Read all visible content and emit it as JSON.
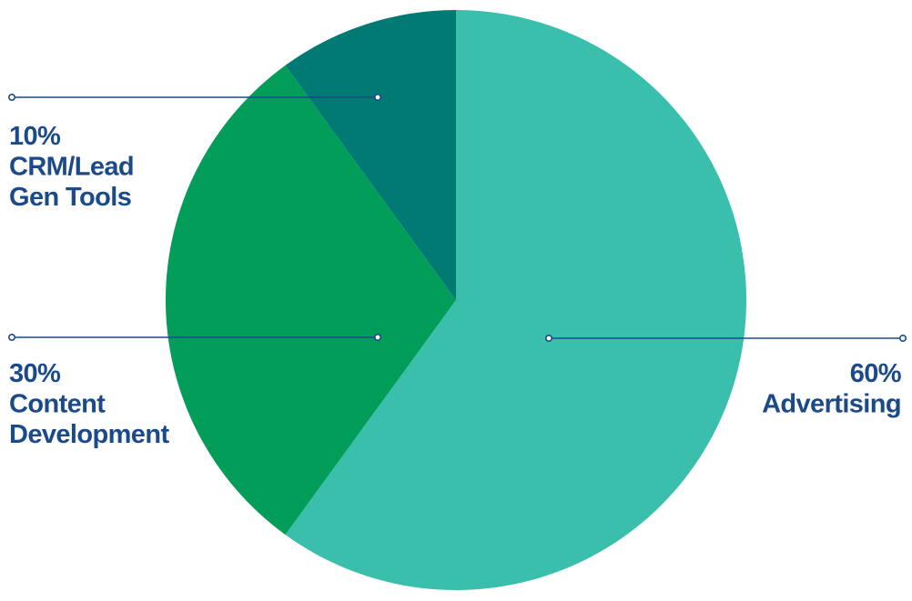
{
  "chart_data": {
    "type": "pie",
    "title": "",
    "start_angle": "12 o'clock",
    "direction": "clockwise",
    "slices": [
      {
        "label": "Advertising",
        "value": 60,
        "percent_label": "60%",
        "label_lines": [
          "60%",
          "Advertising"
        ],
        "label_side": "right",
        "color": "#3bbfad"
      },
      {
        "label": "Content Development",
        "value": 30,
        "percent_label": "30%",
        "label_lines": [
          "30%",
          "Content",
          "Development"
        ],
        "label_side": "left",
        "color": "#019d59"
      },
      {
        "label": "CRM/Lead Gen Tools",
        "value": 10,
        "percent_label": "10%",
        "label_lines": [
          "10%",
          "CRM/Lead",
          "Gen Tools"
        ],
        "label_side": "left",
        "color": "#007a72"
      }
    ],
    "label_color": "#1b4a8a",
    "leader_line_color": "#1b4a8a"
  }
}
